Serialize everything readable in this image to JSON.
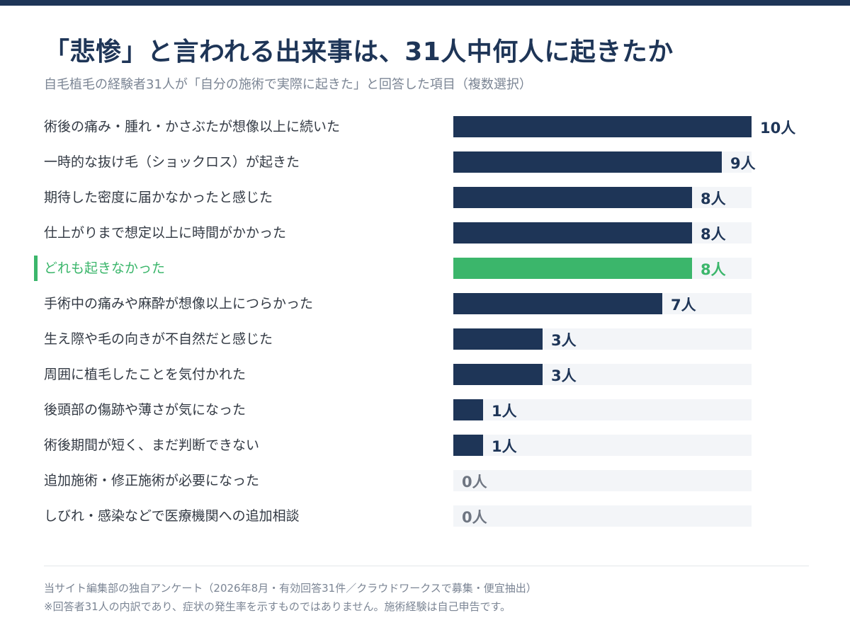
{
  "title": "「悲惨」と言われる出来事は、31人中何人に起きたか",
  "subtitle": "自毛植毛の経験者31人が「自分の施術で実際に起きた」と回答した項目（複数選択）",
  "colors": {
    "primary": "#1e3557",
    "highlight": "#3bb66b",
    "track": "#f3f5f8"
  },
  "chart_data": {
    "type": "bar",
    "orientation": "horizontal",
    "title": "「悲惨」と言われる出来事は、31人中何人に起きたか",
    "subtitle": "自毛植毛の経験者31人が「自分の施術で実際に起きた」と回答した項目（複数選択）",
    "unit": "人",
    "xlim": [
      0,
      10
    ],
    "categories": [
      "術後の痛み・腫れ・かさぶたが想像以上に続いた",
      "一時的な抜け毛（ショックロス）が起きた",
      "期待した密度に届かなかったと感じた",
      "仕上がりまで想定以上に時間がかかった",
      "どれも起きなかった",
      "手術中の痛みや麻酔が想像以上につらかった",
      "生え際や毛の向きが不自然だと感じた",
      "周囲に植毛したことを気付かれた",
      "後頭部の傷跡や薄さが気になった",
      "術後期間が短く、まだ判断できない",
      "追加施術・修正施術が必要になった",
      "しびれ・感染などで医療機関への追加相談"
    ],
    "values": [
      10,
      9,
      8,
      8,
      8,
      7,
      3,
      3,
      1,
      1,
      0,
      0
    ],
    "value_labels": [
      "10人",
      "9人",
      "8人",
      "8人",
      "8人",
      "7人",
      "3人",
      "3人",
      "1人",
      "1人",
      "0人",
      "0人"
    ],
    "highlight_index": 4
  },
  "footer": {
    "note1": "当サイト編集部の独自アンケート（2026年8月・有効回答31件／クラウドワークスで募集・便宜抽出）",
    "note2": "※回答者31人の内訳であり、症状の発生率を示すものではありません。施術経験は自己申告です。"
  }
}
